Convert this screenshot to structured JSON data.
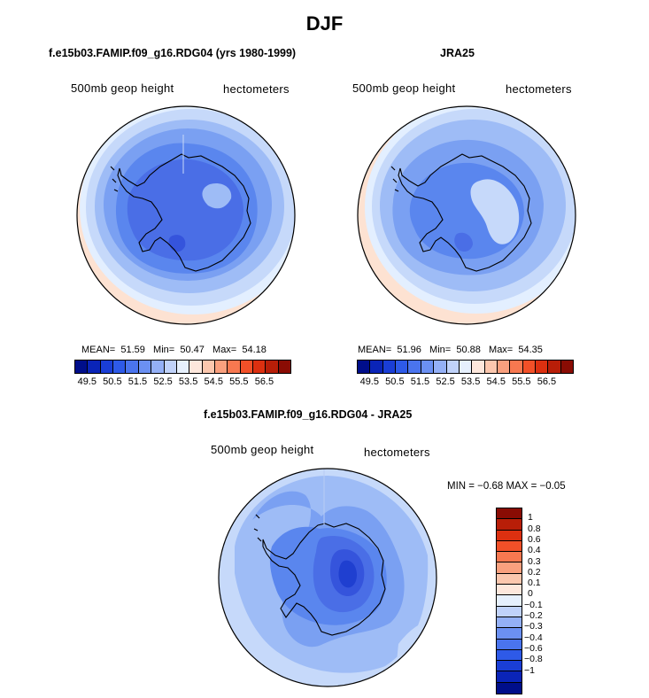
{
  "title": "DJF",
  "panels": {
    "model": {
      "subtitle": "f.e15b03.FAMIP.f09_g16.RDG04 (yrs 1980-1999)",
      "left_label": "500mb geop height",
      "right_label": "hectometers",
      "stats": {
        "mean_label": "MEAN=",
        "mean": "51.59",
        "min_label": "Min=",
        "min": "50.47",
        "max_label": "Max=",
        "max": "54.18"
      }
    },
    "obs": {
      "subtitle": "JRA25",
      "left_label": "500mb geop height",
      "right_label": "hectometers",
      "stats": {
        "mean_label": "MEAN=",
        "mean": "51.96",
        "min_label": "Min=",
        "min": "50.88",
        "max_label": "Max=",
        "max": "54.35"
      }
    },
    "diff": {
      "subtitle": "f.e15b03.FAMIP.f09_g16.RDG04 - JRA25",
      "left_label": "500mb geop height",
      "right_label": "hectometers",
      "minmax": "MIN =  −0.68  MAX =  −0.05"
    }
  },
  "colorbar_horizontal": {
    "colors": [
      "#000e8a",
      "#0a24b8",
      "#1a3ed6",
      "#2e5ae8",
      "#4a74ee",
      "#6b90f2",
      "#94b0f6",
      "#c0d2fa",
      "#e6f0fd",
      "#fde7dc",
      "#fbc7ae",
      "#f9a07e",
      "#f77850",
      "#f25028",
      "#dc3010",
      "#b81e08",
      "#8a0c04"
    ],
    "tick_labels": [
      "49.5",
      "50.5",
      "51.5",
      "52.5",
      "53.5",
      "54.5",
      "55.5",
      "56.5"
    ]
  },
  "colorbar_vertical": {
    "colors": [
      "#8a0c04",
      "#b81e08",
      "#dc3010",
      "#f25028",
      "#f77850",
      "#f9a07e",
      "#fbc7ae",
      "#fde7dc",
      "#e6f0fd",
      "#c0d2fa",
      "#94b0f6",
      "#6b90f2",
      "#4a74ee",
      "#2e5ae8",
      "#1a3ed6",
      "#0a24b8",
      "#000e8a"
    ],
    "tick_labels": [
      "1",
      "0.8",
      "0.6",
      "0.4",
      "0.3",
      "0.2",
      "0.1",
      "0",
      "−0.1",
      "−0.2",
      "−0.3",
      "−0.4",
      "−0.6",
      "−0.8",
      "−1"
    ]
  },
  "map_colors": {
    "c1": "#fde2d2",
    "c2": "#e3efff",
    "c3": "#c6d9fa",
    "c4": "#9ebcf6",
    "c5": "#7aa0f2",
    "c6": "#5a86ee",
    "c7": "#4a6ee6",
    "c8": "#3554dc",
    "c9": "#1f3fd0"
  }
}
